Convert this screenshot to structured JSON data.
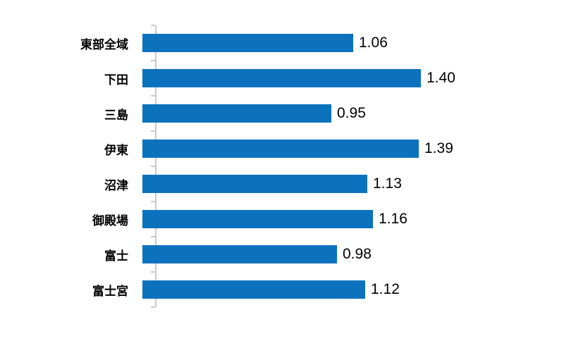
{
  "chart_data": {
    "type": "bar",
    "orientation": "horizontal",
    "title": "",
    "xlabel": "",
    "ylabel": "",
    "categories": [
      "東部全域",
      "下田",
      "三島",
      "伊東",
      "沼津",
      "御殿場",
      "富士",
      "富士宮"
    ],
    "values": [
      1.06,
      1.4,
      0.95,
      1.39,
      1.13,
      1.16,
      0.98,
      1.12
    ],
    "value_labels": [
      "1.06",
      "1.40",
      "0.95",
      "1.39",
      "1.13",
      "1.16",
      "0.98",
      "1.12"
    ],
    "xlim": [
      0,
      2.0
    ],
    "grid": false,
    "legend": false,
    "bar_color": "#0c72bd",
    "axis_color": "#c9c9c9",
    "label_color": "#000000"
  }
}
